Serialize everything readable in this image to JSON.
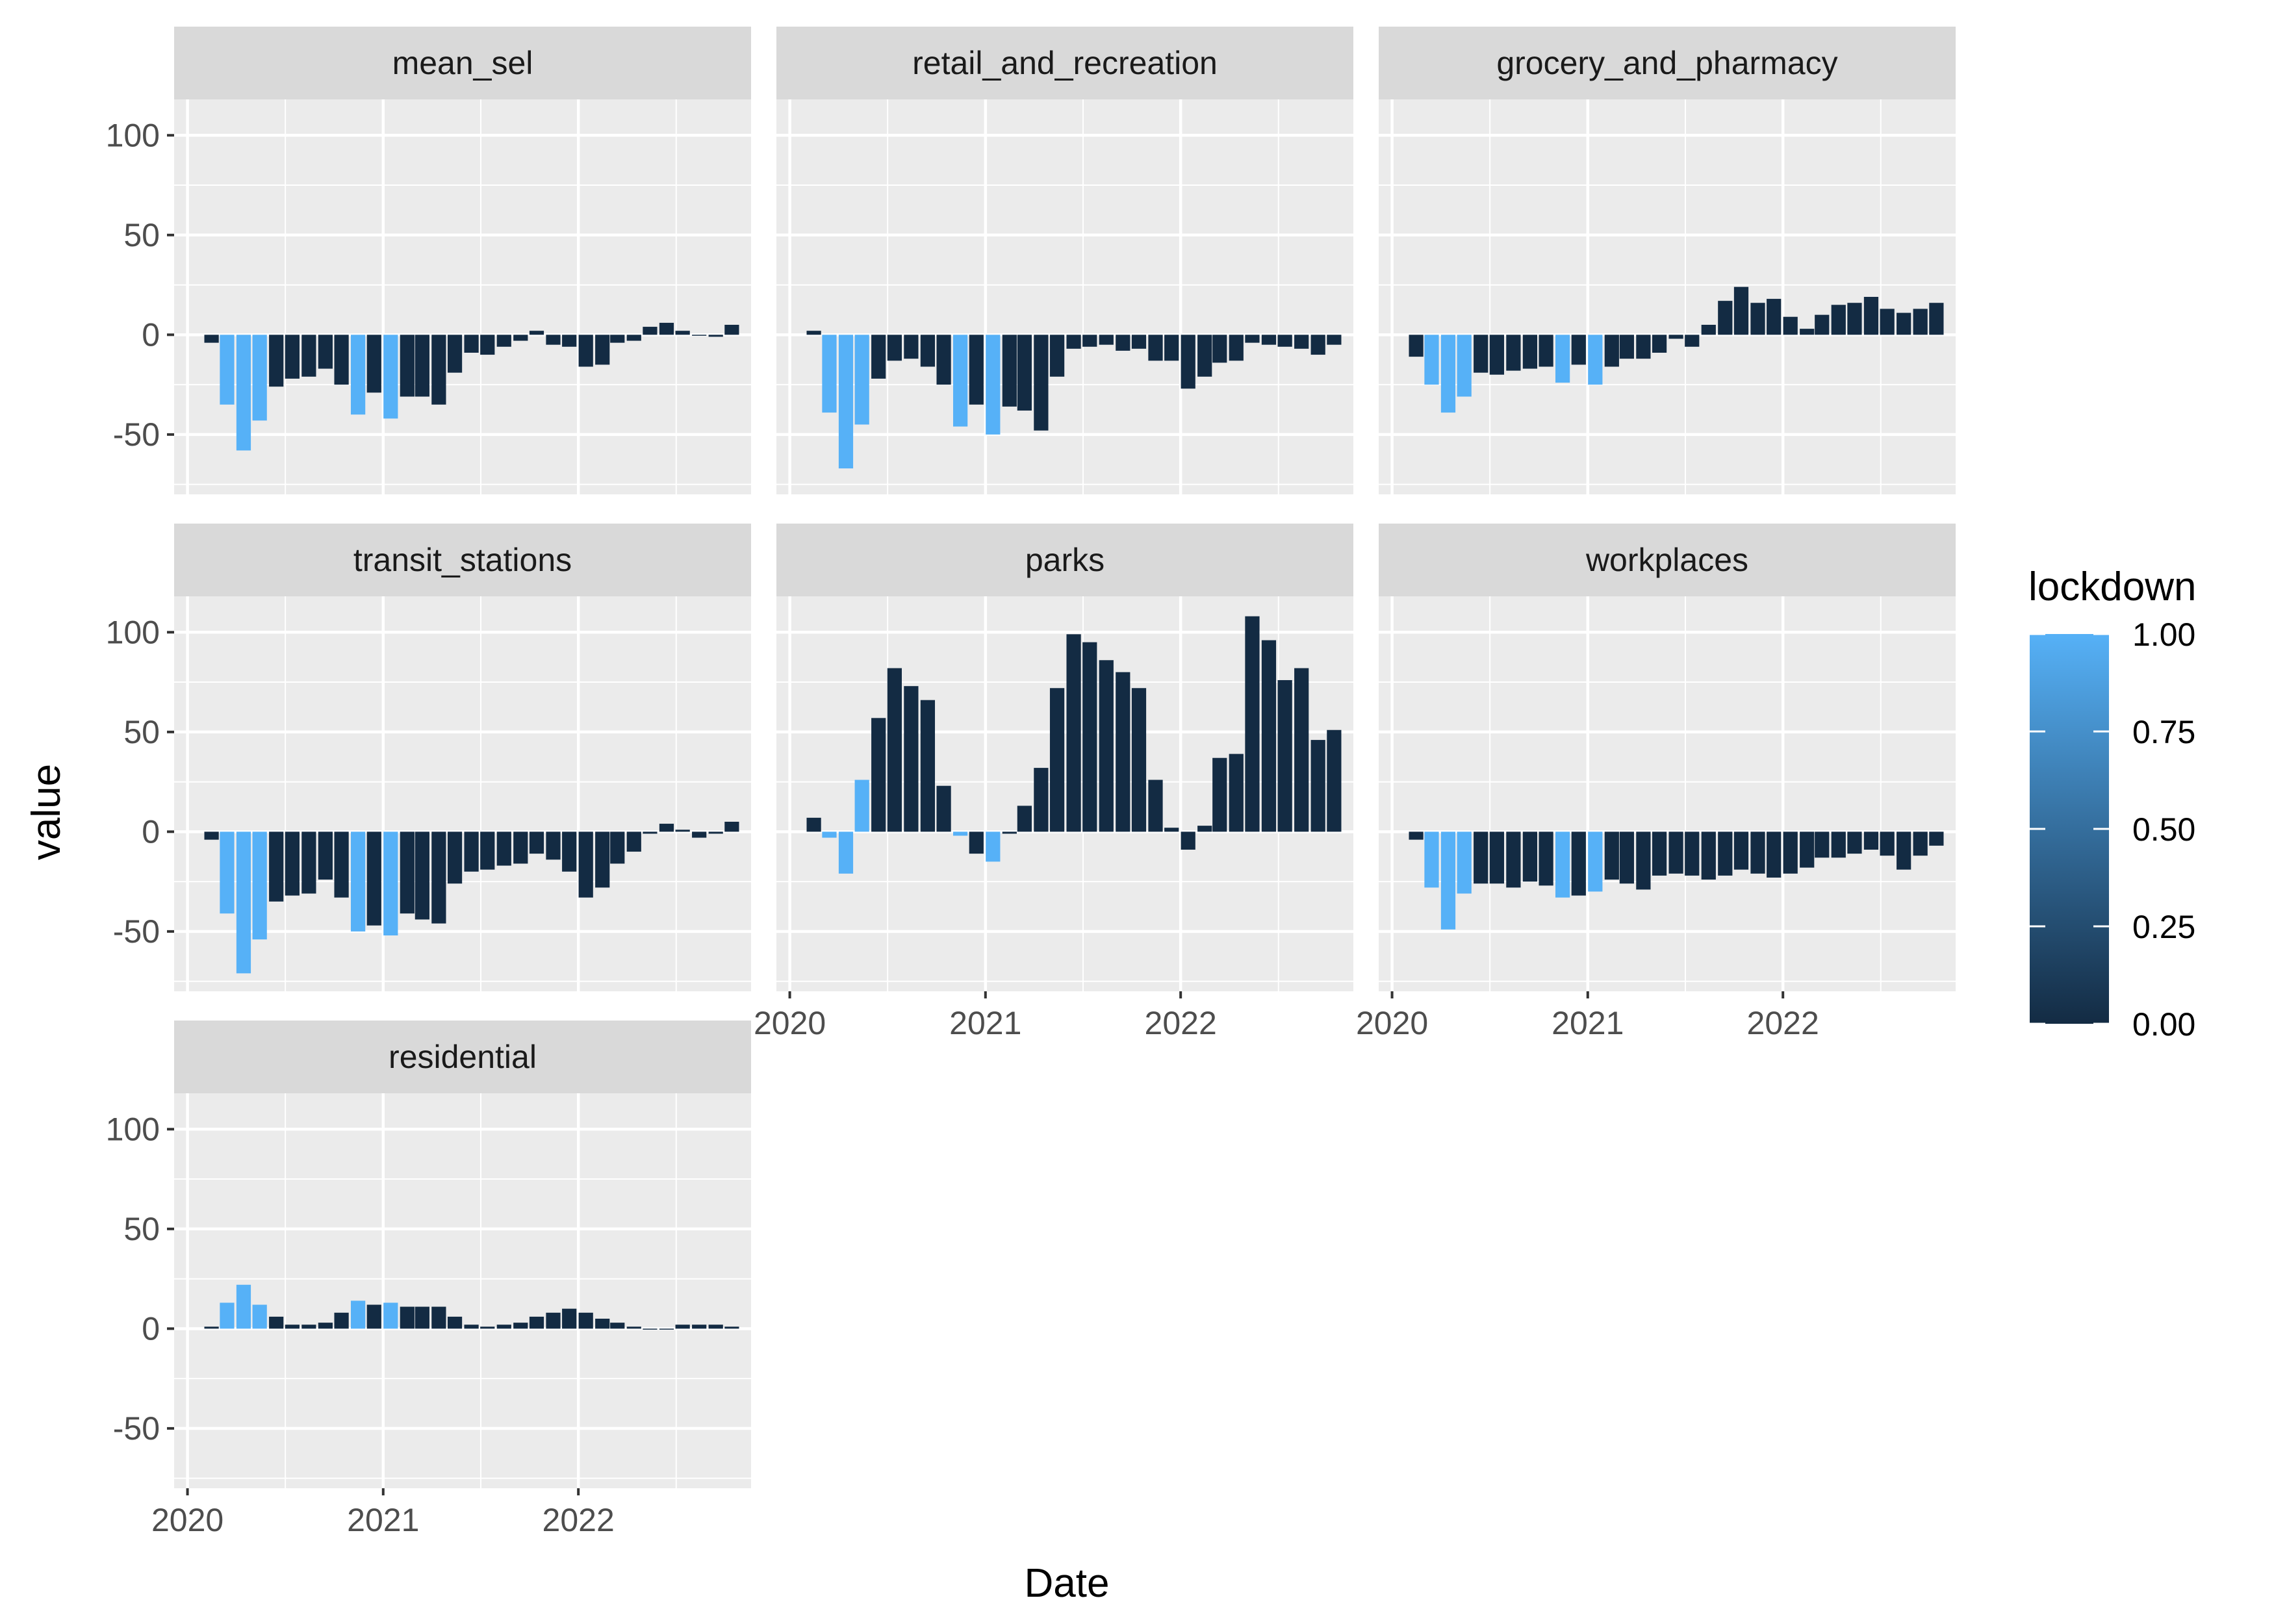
{
  "chart_data": {
    "type": "bar",
    "layout": "facet_wrap",
    "ncol": 3,
    "xlabel": "Date",
    "ylabel": "value",
    "ylim": [
      -80,
      118
    ],
    "y_ticks": [
      100,
      50,
      0,
      -50
    ],
    "y_tick_labels": [
      "100",
      "50",
      "0",
      "-50"
    ],
    "xlim": [
      "2019-12-07",
      "2022-11-20"
    ],
    "x_ticks": [
      "2020-01-01",
      "2021-01-01",
      "2022-01-01"
    ],
    "x_tick_labels": [
      "2020",
      "2021",
      "2022"
    ],
    "x": [
      "2020-02",
      "2020-03",
      "2020-04",
      "2020-05",
      "2020-06",
      "2020-07",
      "2020-08",
      "2020-09",
      "2020-10",
      "2020-11",
      "2020-12",
      "2021-01",
      "2021-02",
      "2021-03",
      "2021-04",
      "2021-05",
      "2021-06",
      "2021-07",
      "2021-08",
      "2021-09",
      "2021-10",
      "2021-11",
      "2021-12",
      "2022-01",
      "2022-02",
      "2022-03",
      "2022-04",
      "2022-05",
      "2022-06",
      "2022-07",
      "2022-08",
      "2022-09",
      "2022-10"
    ],
    "lockdown": [
      0,
      1,
      1,
      1,
      0,
      0,
      0,
      0,
      0,
      1,
      0,
      1,
      0,
      0,
      0,
      0,
      0,
      0,
      0,
      0,
      0,
      0,
      0,
      0,
      0,
      0,
      0,
      0,
      0,
      0,
      0,
      0,
      0
    ],
    "grid": true,
    "panel_background": "#ebebeb",
    "strip_background": "#d9d9d9",
    "fill_scale": {
      "title": "lockdown",
      "low": "#132b43",
      "high": "#56b1f7",
      "breaks": [
        1.0,
        0.75,
        0.5,
        0.25,
        0.0
      ],
      "labels": [
        "1.00",
        "0.75",
        "0.50",
        "0.25",
        "0.00"
      ],
      "position": "right"
    },
    "series": [
      {
        "name": "mean_sel",
        "values": [
          -4,
          -35,
          -58,
          -43,
          -26,
          -22,
          -21,
          -17,
          -25,
          -40,
          -29,
          -42,
          -31,
          -31,
          -35,
          -19,
          -9,
          -10,
          -6,
          -3,
          2,
          -5,
          -6,
          -16,
          -15,
          -4,
          -3,
          4,
          6,
          2,
          0,
          -1,
          5
        ]
      },
      {
        "name": "retail_and_recreation",
        "values": [
          2,
          -39,
          -67,
          -45,
          -22,
          -13,
          -12,
          -16,
          -25,
          -46,
          -35,
          -50,
          -36,
          -38,
          -48,
          -21,
          -7,
          -6,
          -5,
          -8,
          -7,
          -13,
          -13,
          -27,
          -21,
          -14,
          -13,
          -4,
          -5,
          -6,
          -7,
          -10,
          -5
        ]
      },
      {
        "name": "grocery_and_pharmacy",
        "values": [
          -11,
          -25,
          -39,
          -31,
          -19,
          -20,
          -18,
          -17,
          -16,
          -24,
          -15,
          -25,
          -16,
          -12,
          -12,
          -9,
          -2,
          -6,
          5,
          17,
          24,
          16,
          18,
          9,
          3,
          10,
          15,
          16,
          19,
          13,
          11,
          13,
          16
        ]
      },
      {
        "name": "transit_stations",
        "values": [
          -4,
          -41,
          -71,
          -54,
          -35,
          -32,
          -31,
          -24,
          -33,
          -50,
          -47,
          -52,
          -41,
          -44,
          -46,
          -26,
          -20,
          -19,
          -17,
          -16,
          -11,
          -14,
          -20,
          -33,
          -28,
          -16,
          -10,
          -1,
          4,
          1,
          -3,
          -1,
          5
        ]
      },
      {
        "name": "parks",
        "values": [
          7,
          -3,
          -21,
          26,
          57,
          82,
          73,
          66,
          23,
          -2,
          -11,
          -15,
          -1,
          13,
          32,
          72,
          99,
          95,
          86,
          80,
          72,
          26,
          2,
          -9,
          3,
          37,
          39,
          108,
          96,
          76,
          82,
          46,
          51
        ]
      },
      {
        "name": "workplaces",
        "values": [
          -4,
          -28,
          -49,
          -31,
          -26,
          -26,
          -28,
          -25,
          -27,
          -33,
          -32,
          -30,
          -24,
          -26,
          -29,
          -22,
          -21,
          -22,
          -24,
          -22,
          -19,
          -21,
          -23,
          -21,
          -18,
          -13,
          -13,
          -11,
          -9,
          -12,
          -19,
          -12,
          -7
        ]
      },
      {
        "name": "residential",
        "values": [
          1,
          13,
          22,
          12,
          6,
          2,
          2,
          3,
          8,
          14,
          12,
          13,
          11,
          11,
          11,
          6,
          2,
          1,
          2,
          3,
          6,
          8,
          10,
          8,
          5,
          3,
          1,
          0,
          0,
          2,
          2,
          2,
          1
        ]
      }
    ]
  }
}
